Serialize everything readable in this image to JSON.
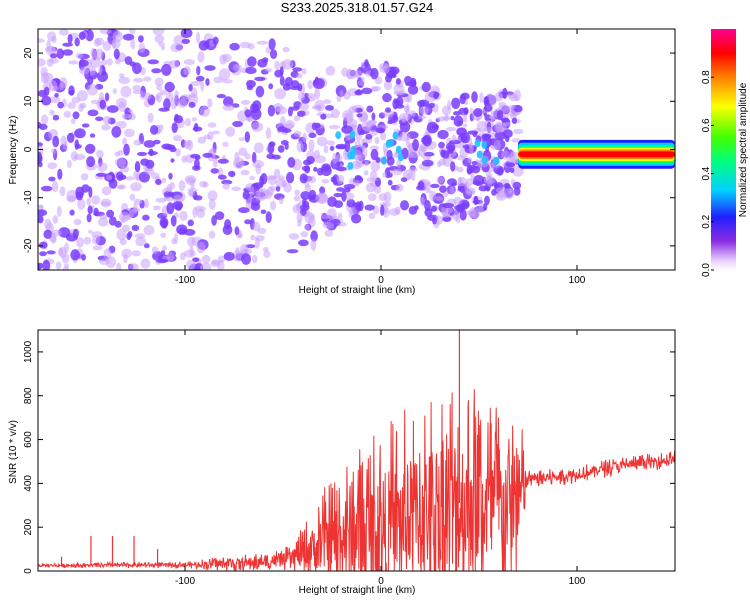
{
  "title": "S233.2025.318.01.57.G24",
  "chart_data": [
    {
      "type": "heatmap",
      "title": "S233.2025.318.01.57.G24",
      "xlabel": "Height of straight line (km)",
      "ylabel": "Frequency (Hz)",
      "xlim": [
        -175,
        150
      ],
      "ylim": [
        -25,
        25
      ],
      "xticks": [
        -100,
        0,
        100
      ],
      "yticks": [
        -20,
        -10,
        0,
        10,
        20
      ],
      "colorbar": {
        "label": "Normalized spectral amplitude",
        "range": [
          0,
          1
        ],
        "ticks": [
          0.0,
          0.2,
          0.4,
          0.6,
          0.8
        ],
        "tick_labels": [
          "0.0",
          "0.2",
          "0.4",
          "0.6",
          "0.8"
        ]
      },
      "features": {
        "noise_region_km": [
          -175,
          70
        ],
        "tone_start_km": 70,
        "tone_end_km": 150,
        "tone_frequency_hz": -1,
        "bright_blob_centers_km": [
          -20,
          5,
          55
        ],
        "colors": {
          "low": "#c8a0ff",
          "mid": "#7a3cff",
          "high": "#ff0000"
        }
      }
    },
    {
      "type": "line",
      "xlabel": "Height of straight line (km)",
      "ylabel": "SNR (10 * v/v)",
      "xlim": [
        -175,
        150
      ],
      "ylim": [
        0,
        1100
      ],
      "xticks": [
        -100,
        0,
        100
      ],
      "yticks": [
        0,
        200,
        400,
        600,
        800,
        1000
      ],
      "series": [
        {
          "name": "SNR",
          "color": "#ee3333",
          "envelope": {
            "x": [
              -175,
              -100,
              -75,
              -60,
              -45,
              -30,
              -20,
              -10,
              0,
              10,
              20,
              30,
              40,
              50,
              60,
              70,
              75,
              80,
              100,
              120,
              150
            ],
            "base": [
              25,
              28,
              35,
              40,
              60,
              120,
              160,
              190,
              200,
              230,
              270,
              300,
              310,
              300,
              290,
              300,
              420,
              420,
              440,
              480,
              510
            ],
            "amplitude": [
              10,
              15,
              40,
              40,
              60,
              250,
              350,
              400,
              500,
              500,
              550,
              600,
              650,
              550,
              500,
              500,
              40,
              40,
              40,
              40,
              40
            ]
          },
          "spikes": [
            {
              "x": -163,
              "y": 65
            },
            {
              "x": -148,
              "y": 160
            },
            {
              "x": -137,
              "y": 160
            },
            {
              "x": -126,
              "y": 160
            },
            {
              "x": -114,
              "y": 100
            },
            {
              "x": 40,
              "y": 1100
            }
          ]
        }
      ]
    }
  ]
}
